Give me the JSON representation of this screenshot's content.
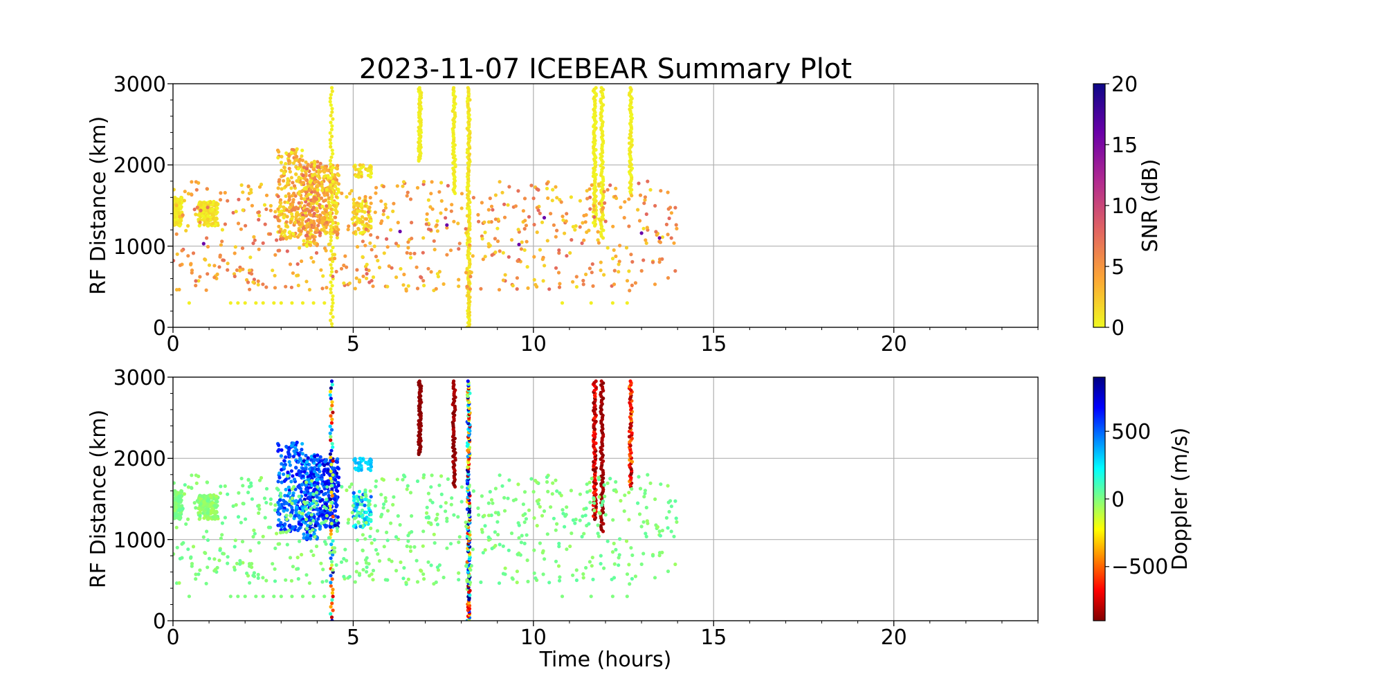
{
  "title": "2023-11-07 ICEBEAR Summary Plot",
  "chart_data": [
    {
      "type": "scatter",
      "name": "snr-panel",
      "color_by": "snr",
      "xlabel": "",
      "ylabel": "RF Distance (km)",
      "xlim": [
        0,
        24
      ],
      "ylim": [
        0,
        3000
      ],
      "xticks": [
        "0",
        "5",
        "10",
        "15",
        "20"
      ],
      "yticks": [
        "0",
        "1000",
        "2000",
        "3000"
      ],
      "grid": true,
      "colorbar": {
        "label": "SNR (dB)",
        "range": [
          0,
          20
        ],
        "ticks": [
          "0",
          "5",
          "10",
          "15",
          "20"
        ],
        "colormap": "plasma_r",
        "colors": [
          "#f0f921",
          "#fca636",
          "#e16462",
          "#b12a90",
          "#6a00a8",
          "#0d0887"
        ]
      }
    },
    {
      "type": "scatter",
      "name": "doppler-panel",
      "color_by": "doppler",
      "xlabel": "Time (hours)",
      "ylabel": "RF Distance (km)",
      "xlim": [
        0,
        24
      ],
      "ylim": [
        0,
        3000
      ],
      "xticks": [
        "0",
        "5",
        "10",
        "15",
        "20"
      ],
      "yticks": [
        "0",
        "1000",
        "2000",
        "3000"
      ],
      "grid": true,
      "colorbar": {
        "label": "Doppler (m/s)",
        "range": [
          -900,
          900
        ],
        "ticks": [
          "−500",
          "0",
          "500"
        ],
        "tick_values": [
          -500,
          0,
          500
        ],
        "colormap": "jet_r",
        "colors": [
          "#800000",
          "#ff0000",
          "#ff8000",
          "#ffff00",
          "#80ff80",
          "#00ffff",
          "#0080ff",
          "#0000ff",
          "#000080"
        ]
      }
    }
  ],
  "echo_regions": {
    "clusters": [
      {
        "t0": 0.0,
        "t1": 0.25,
        "r0": 1250,
        "r1": 1600,
        "n": 110,
        "snr": [
          0,
          1.5
        ],
        "dop": [
          -40,
          40
        ]
      },
      {
        "t0": 0.7,
        "t1": 1.25,
        "r0": 1250,
        "r1": 1550,
        "n": 160,
        "snr": [
          0,
          2
        ],
        "dop": [
          -80,
          20
        ]
      },
      {
        "t0": 2.9,
        "t1": 3.6,
        "r0": 1100,
        "r1": 2200,
        "n": 200,
        "snr": [
          0,
          6
        ],
        "dop": [
          350,
          700
        ]
      },
      {
        "t0": 3.6,
        "t1": 4.1,
        "r0": 1000,
        "r1": 2050,
        "n": 240,
        "snr": [
          0,
          8
        ],
        "dop": [
          300,
          800
        ]
      },
      {
        "t0": 4.1,
        "t1": 4.6,
        "r0": 1150,
        "r1": 2000,
        "n": 180,
        "snr": [
          0,
          6
        ],
        "dop": [
          450,
          800
        ]
      },
      {
        "t0": 5.0,
        "t1": 5.5,
        "r0": 1150,
        "r1": 1600,
        "n": 90,
        "snr": [
          0,
          4
        ],
        "dop": [
          -50,
          550
        ]
      },
      {
        "t0": 5.0,
        "t1": 5.5,
        "r0": 1850,
        "r1": 2000,
        "n": 40,
        "snr": [
          0,
          3
        ],
        "dop": [
          250,
          400
        ]
      }
    ],
    "vertical_streaks": [
      {
        "t": 4.4,
        "r0": 0,
        "r1": 2950,
        "n": 70,
        "snr": [
          0,
          1
        ],
        "dop": [
          -900,
          900
        ]
      },
      {
        "t": 6.85,
        "r0": 2050,
        "r1": 2950,
        "n": 60,
        "snr": [
          0,
          1
        ],
        "dop": [
          -900,
          -850
        ]
      },
      {
        "t": 7.8,
        "r0": 1650,
        "r1": 2950,
        "n": 60,
        "snr": [
          0,
          1
        ],
        "dop": [
          -900,
          -800
        ]
      },
      {
        "t": 8.2,
        "r0": 0,
        "r1": 2950,
        "n": 160,
        "snr": [
          0,
          2
        ],
        "dop": [
          -900,
          900
        ]
      },
      {
        "t": 11.7,
        "r0": 1250,
        "r1": 2950,
        "n": 90,
        "snr": [
          0,
          1
        ],
        "dop": [
          -900,
          -600
        ]
      },
      {
        "t": 11.9,
        "r0": 1100,
        "r1": 2950,
        "n": 80,
        "snr": [
          0,
          1
        ],
        "dop": [
          -900,
          -800
        ]
      },
      {
        "t": 12.7,
        "r0": 1650,
        "r1": 2950,
        "n": 60,
        "snr": [
          0,
          1
        ],
        "dop": [
          -900,
          -400
        ]
      }
    ],
    "scatter_field": {
      "t0": 0,
      "t1": 14,
      "r0": 450,
      "r1": 1800,
      "n": 650,
      "snr": [
        1,
        8
      ],
      "dop": [
        -60,
        60
      ]
    },
    "low_range_band": {
      "r": 300,
      "t_values": [
        0.45,
        1.6,
        1.8,
        2.0,
        2.3,
        2.5,
        2.8,
        3.0,
        3.3,
        3.6,
        3.9,
        4.2,
        10.8,
        11.6,
        12.2,
        12.6
      ]
    },
    "dark_points": [
      [
        0.85,
        1030
      ],
      [
        7.6,
        1260
      ],
      [
        9.6,
        1020
      ],
      [
        10.3,
        1350
      ],
      [
        13.0,
        1160
      ],
      [
        13.5,
        1100
      ],
      [
        6.3,
        1180
      ]
    ]
  }
}
